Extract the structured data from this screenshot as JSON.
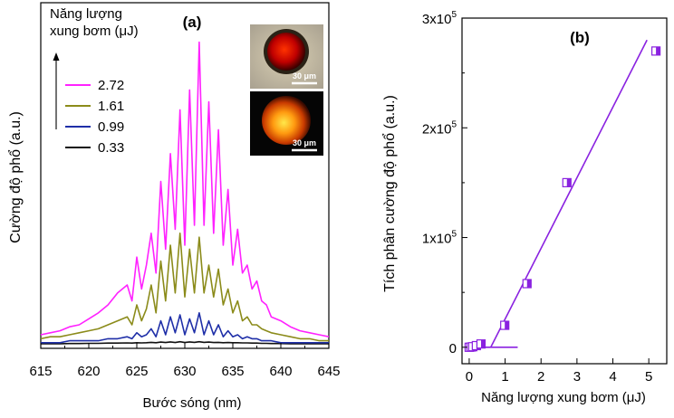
{
  "chart_data": [
    {
      "panel_label": "(a)",
      "type": "line",
      "xlabel": "Bước sóng (nm)",
      "ylabel": "Cường độ phổ (a.u.)",
      "xlim": [
        615,
        645
      ],
      "x_ticks": [
        "615",
        "620",
        "625",
        "630",
        "635",
        "640",
        "645"
      ],
      "legend": {
        "title_line1": "Năng lượng",
        "title_line2": "xung bơm (μJ)",
        "placement": "top-left"
      },
      "inset_scale_top": "30 μm",
      "inset_scale_bottom": "30 μm",
      "x": [
        615,
        616,
        617,
        618,
        619,
        620,
        621,
        622,
        623,
        624,
        624.5,
        625,
        625.5,
        626,
        626.5,
        627,
        627.5,
        628,
        628.5,
        629,
        629.5,
        630,
        630.5,
        631,
        631.5,
        632,
        632.5,
        633,
        633.5,
        634,
        634.5,
        635,
        635.5,
        636,
        636.5,
        637,
        637.5,
        638,
        638.5,
        639,
        640,
        641,
        642,
        643,
        644,
        645
      ],
      "series": [
        {
          "name": "2.72",
          "color": "#ff22ff",
          "values": [
            0.05,
            0.06,
            0.07,
            0.09,
            0.1,
            0.13,
            0.16,
            0.2,
            0.26,
            0.3,
            0.22,
            0.44,
            0.28,
            0.4,
            0.56,
            0.36,
            0.82,
            0.48,
            0.96,
            0.58,
            1.18,
            0.5,
            1.28,
            0.6,
            1.52,
            0.6,
            1.22,
            0.56,
            1.08,
            0.5,
            0.78,
            0.4,
            0.58,
            0.36,
            0.4,
            0.28,
            0.32,
            0.22,
            0.2,
            0.14,
            0.12,
            0.09,
            0.07,
            0.06,
            0.05,
            0.04
          ]
        },
        {
          "name": "1.61",
          "color": "#8b8b1a",
          "values": [
            0.03,
            0.04,
            0.04,
            0.05,
            0.06,
            0.07,
            0.08,
            0.1,
            0.12,
            0.14,
            0.1,
            0.2,
            0.12,
            0.18,
            0.3,
            0.16,
            0.42,
            0.22,
            0.5,
            0.26,
            0.56,
            0.24,
            0.48,
            0.26,
            0.54,
            0.26,
            0.4,
            0.24,
            0.38,
            0.2,
            0.28,
            0.16,
            0.22,
            0.12,
            0.14,
            0.1,
            0.1,
            0.08,
            0.07,
            0.06,
            0.05,
            0.04,
            0.03,
            0.03,
            0.02,
            0.02
          ]
        },
        {
          "name": "0.99",
          "color": "#1f2fa8",
          "values": [
            0.01,
            0.01,
            0.01,
            0.02,
            0.02,
            0.02,
            0.02,
            0.03,
            0.03,
            0.04,
            0.03,
            0.06,
            0.04,
            0.05,
            0.08,
            0.04,
            0.12,
            0.05,
            0.14,
            0.06,
            0.15,
            0.05,
            0.13,
            0.06,
            0.16,
            0.05,
            0.12,
            0.05,
            0.1,
            0.04,
            0.07,
            0.04,
            0.05,
            0.03,
            0.04,
            0.03,
            0.03,
            0.02,
            0.02,
            0.02,
            0.01,
            0.01,
            0.01,
            0.01,
            0.01,
            0.01
          ]
        },
        {
          "name": "0.33",
          "color": "#111111",
          "values": [
            0.005,
            0.005,
            0.005,
            0.006,
            0.006,
            0.007,
            0.007,
            0.008,
            0.008,
            0.009,
            0.008,
            0.01,
            0.009,
            0.01,
            0.012,
            0.01,
            0.013,
            0.011,
            0.014,
            0.011,
            0.015,
            0.011,
            0.014,
            0.012,
            0.015,
            0.012,
            0.013,
            0.011,
            0.012,
            0.01,
            0.011,
            0.01,
            0.01,
            0.009,
            0.009,
            0.008,
            0.008,
            0.007,
            0.007,
            0.006,
            0.006,
            0.005,
            0.005,
            0.005,
            0.005,
            0.005
          ]
        }
      ]
    },
    {
      "panel_label": "(b)",
      "type": "scatter",
      "xlabel": "Năng lượng xung bơm (μJ)",
      "ylabel": "Tích phân cường độ phổ (a.u.)",
      "xlim": [
        -0.2,
        5.5
      ],
      "ylim": [
        -15000,
        300000
      ],
      "x_ticks": [
        "0",
        "1",
        "2",
        "3",
        "4",
        "5"
      ],
      "y_ticks": [
        {
          "value": 0,
          "base": "0",
          "exp": ""
        },
        {
          "value": 100000,
          "base": "1x10",
          "exp": "5"
        },
        {
          "value": 200000,
          "base": "2x10",
          "exp": "5"
        },
        {
          "value": 300000,
          "base": "3x10",
          "exp": "5"
        }
      ],
      "points": [
        {
          "x": 0.0,
          "y": 0
        },
        {
          "x": 0.05,
          "y": 200
        },
        {
          "x": 0.1,
          "y": 500
        },
        {
          "x": 0.2,
          "y": 1500
        },
        {
          "x": 0.33,
          "y": 3000
        },
        {
          "x": 0.99,
          "y": 20000
        },
        {
          "x": 1.61,
          "y": 58000
        },
        {
          "x": 2.72,
          "y": 150000
        },
        {
          "x": 5.2,
          "y": 270000
        }
      ],
      "fit_line": {
        "x1": 0.6,
        "y1": 0,
        "x2": 4.95,
        "y2": 280000
      },
      "baseline_fit": {
        "x1": 0.0,
        "y1": 0,
        "x2": 1.35,
        "y2": 0
      },
      "color": "#8a22e0"
    }
  ]
}
